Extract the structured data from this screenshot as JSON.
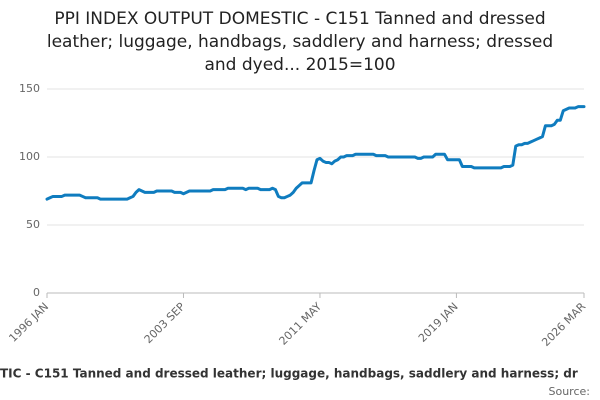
{
  "chart_data": {
    "type": "line",
    "title_lines": [
      "PPI INDEX OUTPUT DOMESTIC - C151 Tanned and dressed",
      "leather; luggage, handbags, saddlery and harness; dressed",
      "and dyed... 2015=100"
    ],
    "x_label": "TIC - C151 Tanned and dressed leather; luggage, handbags, saddlery and harness; dr",
    "source": "Source:",
    "categories": [
      "1996 JAN",
      null,
      null,
      null,
      null,
      null,
      null,
      null,
      null,
      null,
      null,
      null,
      null,
      null,
      null,
      null,
      null,
      null,
      null,
      null,
      null,
      null,
      null,
      null,
      null,
      null,
      null,
      null,
      null,
      null,
      null,
      null,
      null,
      null,
      null,
      null,
      null,
      null,
      null,
      null,
      null,
      null,
      null,
      null,
      null,
      null,
      "2003 SEP",
      null,
      null,
      null,
      null,
      null,
      null,
      null,
      null,
      null,
      null,
      null,
      null,
      null,
      null,
      null,
      null,
      null,
      null,
      null,
      null,
      null,
      null,
      null,
      null,
      null,
      null,
      null,
      null,
      null,
      null,
      null,
      null,
      null,
      null,
      null,
      null,
      null,
      null,
      null,
      null,
      null,
      null,
      null,
      null,
      null,
      "2011 MAY",
      null,
      null,
      null,
      null,
      null,
      null,
      null,
      null,
      null,
      null,
      null,
      null,
      null,
      null,
      null,
      null,
      null,
      null,
      null,
      null,
      null,
      null,
      null,
      null,
      null,
      null,
      null,
      null,
      null,
      null,
      null,
      null,
      null,
      null,
      null,
      null,
      null,
      null,
      null,
      null,
      null,
      null,
      null,
      null,
      null,
      "2019 JAN",
      null,
      null,
      null,
      null,
      null,
      null,
      null,
      null,
      null,
      null,
      null,
      null,
      null,
      null,
      null,
      null,
      null,
      null,
      null,
      null,
      null,
      null,
      null,
      null,
      null,
      null,
      null,
      null,
      null,
      null,
      null,
      null,
      null,
      null,
      null,
      null,
      null,
      null,
      null,
      null,
      null,
      null,
      "2026 MAR"
    ],
    "series": [
      {
        "name": "PPI index",
        "color": "#0f7cbf",
        "values": [
          69,
          70,
          71,
          71,
          71,
          71,
          72,
          72,
          72,
          72,
          72,
          72,
          71,
          70,
          70,
          70,
          70,
          70,
          69,
          69,
          69,
          69,
          69,
          69,
          69,
          69,
          69,
          69,
          70,
          71,
          74,
          76,
          75,
          74,
          74,
          74,
          74,
          75,
          75,
          75,
          75,
          75,
          75,
          74,
          74,
          74,
          73,
          74,
          75,
          75,
          75,
          75,
          75,
          75,
          75,
          75,
          76,
          76,
          76,
          76,
          76,
          77,
          77,
          77,
          77,
          77,
          77,
          76,
          77,
          77,
          77,
          77,
          76,
          76,
          76,
          76,
          77,
          76,
          71,
          70,
          70,
          71,
          72,
          74,
          77,
          79,
          81,
          81,
          81,
          81,
          90,
          98,
          99,
          97,
          96,
          96,
          95,
          97,
          98,
          100,
          100,
          101,
          101,
          101,
          102,
          102,
          102,
          102,
          102,
          102,
          102,
          101,
          101,
          101,
          101,
          100,
          100,
          100,
          100,
          100,
          100,
          100,
          100,
          100,
          100,
          99,
          99,
          100,
          100,
          100,
          100,
          102,
          102,
          102,
          102,
          98,
          98,
          98,
          98,
          98,
          93,
          93,
          93,
          93,
          92,
          92,
          92,
          92,
          92,
          92,
          92,
          92,
          92,
          92,
          93,
          93,
          93,
          94,
          108,
          109,
          109,
          110,
          110,
          111,
          112,
          113,
          114,
          115,
          123,
          123,
          123,
          124,
          127,
          127,
          134,
          135,
          136,
          136,
          136,
          137,
          137,
          137
        ]
      }
    ],
    "ylim": [
      0,
      150
    ],
    "yticks": [
      0,
      50,
      100,
      150
    ],
    "grid": true
  }
}
